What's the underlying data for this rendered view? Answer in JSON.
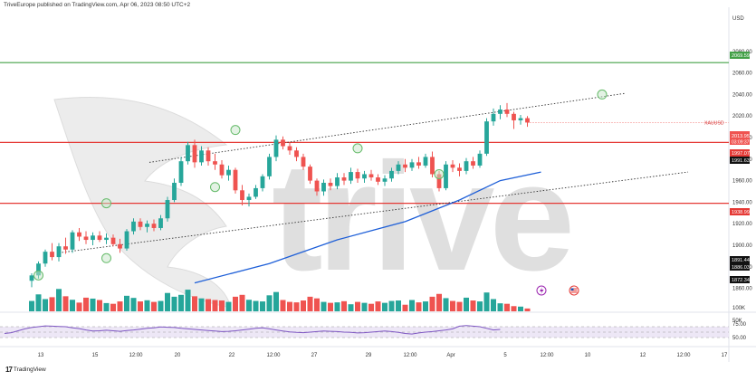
{
  "header": {
    "publisher": "TriveEurope published on TradingView.com, Apr 06, 2023 08:50 UTC+2"
  },
  "brand": {
    "watermark": "trive",
    "footer_logo": "TradingView",
    "footer_logo_mark": "17"
  },
  "colors": {
    "up": "#26a69a",
    "down": "#ef5350",
    "resistance": "#e53935",
    "top_line": "#43a047",
    "ma": "#1e5fd8",
    "rsi": "#7e57c2",
    "rsi_band": "#ede7f6",
    "event_flag": "#9c27b0"
  },
  "chart_data": [
    {
      "type": "candlestick",
      "symbol": "XAUUSD",
      "currency": "USD",
      "ylim": [
        1860,
        2100
      ],
      "y_ticks": [
        1860,
        1880,
        1900,
        1920,
        1940,
        1960,
        1980,
        2000,
        2020,
        2040,
        2060,
        2080
      ],
      "x_ticks": [
        "13",
        "15",
        "12:00",
        "20",
        "22",
        "12:00",
        "27",
        "29",
        "12:00",
        "Apr",
        "5",
        "12:00",
        "10",
        "12",
        "12:00",
        "17"
      ],
      "price_labels": {
        "last": "2013.95",
        "countdown": "03:09:37",
        "top_line": "2069.59",
        "resistance_1": "1997.07",
        "resistance_1b": "1991.63",
        "support": "1938.99",
        "lows": [
          "1891.44",
          "1886.03",
          "1872.34"
        ]
      },
      "horizontal_lines": [
        {
          "name": "top_line",
          "value": 2069.59
        },
        {
          "name": "resistance",
          "value": 1995.5
        },
        {
          "name": "support",
          "value": 1938.99
        }
      ],
      "trend_channel": {
        "upper": {
          "from": [
            0,
            1977
          ],
          "to": [
            72,
            2041
          ]
        },
        "lower": {
          "from": [
            4,
            1893
          ],
          "to": [
            96,
            1968
          ]
        }
      },
      "moving_average": [
        [
          24,
          1865
        ],
        [
          35,
          1883
        ],
        [
          45,
          1905
        ],
        [
          55,
          1922
        ],
        [
          63,
          1942
        ],
        [
          69,
          1960
        ],
        [
          75,
          1968
        ]
      ],
      "ohlc": [
        [
          1867,
          1874,
          1861,
          1872
        ],
        [
          1872,
          1885,
          1869,
          1883
        ],
        [
          1883,
          1896,
          1880,
          1894
        ],
        [
          1894,
          1902,
          1886,
          1889
        ],
        [
          1889,
          1902,
          1885,
          1899
        ],
        [
          1899,
          1907,
          1892,
          1896
        ],
        [
          1896,
          1914,
          1893,
          1912
        ],
        [
          1912,
          1916,
          1904,
          1908
        ],
        [
          1908,
          1913,
          1901,
          1905
        ],
        [
          1905,
          1912,
          1900,
          1909
        ],
        [
          1909,
          1913,
          1903,
          1905
        ],
        [
          1905,
          1911,
          1901,
          1907
        ],
        [
          1907,
          1910,
          1899,
          1901
        ],
        [
          1901,
          1906,
          1893,
          1897
        ],
        [
          1897,
          1915,
          1895,
          1913
        ],
        [
          1913,
          1925,
          1910,
          1922
        ],
        [
          1922,
          1925,
          1914,
          1917
        ],
        [
          1917,
          1923,
          1912,
          1920
        ],
        [
          1920,
          1924,
          1913,
          1916
        ],
        [
          1916,
          1928,
          1914,
          1925
        ],
        [
          1925,
          1945,
          1922,
          1942
        ],
        [
          1942,
          1962,
          1940,
          1958
        ],
        [
          1958,
          1982,
          1955,
          1978
        ],
        [
          1978,
          1996,
          1975,
          1993
        ],
        [
          1993,
          1998,
          1972,
          1977
        ],
        [
          1977,
          1992,
          1974,
          1988
        ],
        [
          1988,
          1991,
          1974,
          1978
        ],
        [
          1978,
          1985,
          1970,
          1975
        ],
        [
          1975,
          1979,
          1962,
          1965
        ],
        [
          1965,
          1974,
          1960,
          1970
        ],
        [
          1970,
          1972,
          1948,
          1951
        ],
        [
          1951,
          1956,
          1937,
          1942
        ],
        [
          1942,
          1948,
          1936,
          1945
        ],
        [
          1945,
          1956,
          1943,
          1953
        ],
        [
          1953,
          1966,
          1950,
          1964
        ],
        [
          1964,
          1985,
          1961,
          1982
        ],
        [
          1982,
          2002,
          1978,
          1998
        ],
        [
          1998,
          2001,
          1989,
          1992
        ],
        [
          1992,
          1995,
          1984,
          1988
        ],
        [
          1988,
          1991,
          1978,
          1982
        ],
        [
          1982,
          1985,
          1970,
          1973
        ],
        [
          1973,
          1975,
          1957,
          1960
        ],
        [
          1960,
          1962,
          1946,
          1950
        ],
        [
          1950,
          1961,
          1946,
          1958
        ],
        [
          1958,
          1962,
          1951,
          1955
        ],
        [
          1955,
          1967,
          1952,
          1963
        ],
        [
          1963,
          1967,
          1956,
          1960
        ],
        [
          1960,
          1972,
          1957,
          1968
        ],
        [
          1968,
          1971,
          1958,
          1962
        ],
        [
          1962,
          1969,
          1958,
          1966
        ],
        [
          1966,
          1970,
          1960,
          1963
        ],
        [
          1963,
          1966,
          1956,
          1959
        ],
        [
          1959,
          1965,
          1955,
          1962
        ],
        [
          1962,
          1972,
          1959,
          1969
        ],
        [
          1969,
          1978,
          1966,
          1975
        ],
        [
          1975,
          1980,
          1968,
          1972
        ],
        [
          1972,
          1980,
          1969,
          1977
        ],
        [
          1977,
          1982,
          1971,
          1974
        ],
        [
          1974,
          1985,
          1972,
          1982
        ],
        [
          1982,
          1987,
          1963,
          1966
        ],
        [
          1966,
          1969,
          1950,
          1953
        ],
        [
          1953,
          1978,
          1951,
          1975
        ],
        [
          1975,
          1979,
          1968,
          1972
        ],
        [
          1972,
          1976,
          1964,
          1969
        ],
        [
          1969,
          1981,
          1966,
          1978
        ],
        [
          1978,
          1982,
          1971,
          1974
        ],
        [
          1974,
          1988,
          1972,
          1985
        ],
        [
          1985,
          2018,
          1983,
          2015
        ],
        [
          2015,
          2027,
          2011,
          2022
        ],
        [
          2022,
          2030,
          2017,
          2026
        ],
        [
          2026,
          2032,
          2019,
          2022
        ],
        [
          2022,
          2024,
          2008,
          2016
        ],
        [
          2016,
          2021,
          2012,
          2018
        ],
        [
          2018,
          2020,
          2010,
          2013.95
        ]
      ],
      "markers": [
        [
          1,
          1872
        ],
        [
          11,
          1888
        ],
        [
          11,
          1939
        ],
        [
          30,
          2007
        ],
        [
          27,
          1954
        ],
        [
          48,
          1990
        ],
        [
          60,
          1966
        ],
        [
          84,
          2040
        ]
      ],
      "event_icons": [
        "flag-us-icon",
        "lightning-icon"
      ]
    },
    {
      "type": "bar",
      "name": "Volume",
      "y_ticks": [
        "100K",
        "50K"
      ],
      "values": [
        44,
        72,
        52,
        60,
        95,
        64,
        49,
        37,
        58,
        54,
        48,
        35,
        32,
        42,
        66,
        57,
        42,
        47,
        40,
        44,
        78,
        62,
        70,
        92,
        64,
        55,
        52,
        48,
        46,
        40,
        62,
        70,
        49,
        44,
        42,
        68,
        82,
        48,
        40,
        38,
        46,
        62,
        55,
        40,
        36,
        38,
        43,
        30,
        40,
        36,
        32,
        42,
        36,
        44,
        46,
        28,
        48,
        38,
        42,
        62,
        74,
        56,
        44,
        40,
        58,
        46,
        42,
        80,
        52,
        34,
        32,
        22,
        20,
        12
      ],
      "colors_by_candle": true
    },
    {
      "type": "line",
      "name": "RSI",
      "ylim": [
        0,
        100
      ],
      "y_ticks": [
        "75.00",
        "50.00"
      ],
      "band": [
        30,
        70
      ],
      "values": [
        45,
        48,
        55,
        62,
        67,
        70,
        73,
        72,
        71,
        70,
        66,
        63,
        58,
        54,
        55,
        57,
        55,
        53,
        56,
        58,
        61,
        64,
        66,
        69,
        68,
        67,
        64,
        62,
        60,
        58,
        56,
        54,
        52,
        53,
        55,
        58,
        61,
        64,
        66,
        62,
        58,
        54,
        51,
        49,
        48,
        50,
        52,
        54,
        53,
        52,
        50,
        49,
        47,
        48,
        50,
        52,
        54,
        52,
        49,
        45,
        43,
        47,
        50,
        52,
        55,
        58,
        62,
        72,
        74,
        72,
        70,
        64,
        58,
        60
      ]
    }
  ]
}
